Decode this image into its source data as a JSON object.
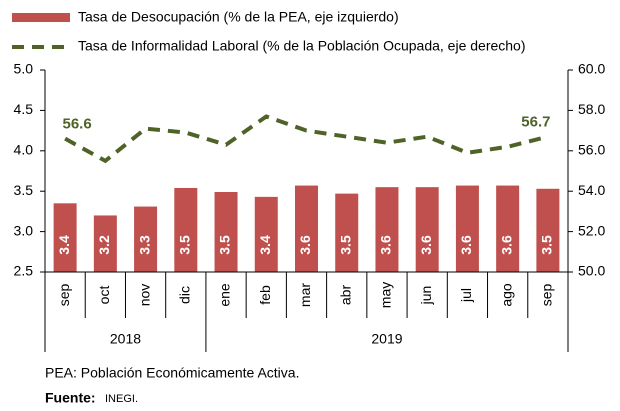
{
  "chart_data": {
    "type": "bar_line",
    "groups": [
      {
        "label": "2018",
        "categories": [
          "sep",
          "oct",
          "nov",
          "dic"
        ]
      },
      {
        "label": "2019",
        "categories": [
          "ene",
          "feb",
          "mar",
          "abr",
          "may",
          "jun",
          "jul",
          "ago",
          "sep"
        ]
      }
    ],
    "series": [
      {
        "name": "Tasa de Desocupación (% de la PEA, eje izquierdo)",
        "type": "bar",
        "color": "#c0504d",
        "values": [
          3.35,
          3.2,
          3.31,
          3.54,
          3.49,
          3.43,
          3.57,
          3.47,
          3.55,
          3.55,
          3.57,
          3.57,
          3.53
        ],
        "value_labels": [
          "3.4",
          "3.2",
          "3.3",
          "3.5",
          "3.5",
          "3.4",
          "3.6",
          "3.5",
          "3.6",
          "3.6",
          "3.6",
          "3.6",
          "3.5"
        ]
      },
      {
        "name": "Tasa de Informalidad Laboral (% de la Población Ocupada, eje derecho)",
        "type": "line",
        "axis": "y2",
        "color": "#4f6228",
        "values": [
          56.6,
          55.5,
          57.1,
          56.9,
          56.3,
          57.7,
          57.0,
          56.7,
          56.4,
          56.7,
          55.9,
          56.2,
          56.7
        ],
        "value_labels": [
          "56.6",
          null,
          null,
          null,
          null,
          null,
          null,
          null,
          null,
          null,
          null,
          null,
          "56.7"
        ]
      }
    ],
    "ylim": [
      2.5,
      5.0
    ],
    "yticks": [
      {
        "value": 2.5,
        "label": "2.5"
      },
      {
        "value": 3.0,
        "label": "3.0"
      },
      {
        "value": 3.5,
        "label": "3.5"
      },
      {
        "value": 4.0,
        "label": "4.0"
      },
      {
        "value": 4.5,
        "label": "4.5"
      },
      {
        "value": 5.0,
        "label": "5.0"
      }
    ],
    "y2lim": [
      50,
      60
    ],
    "y2ticks": [
      {
        "value": 50,
        "label": "50.0"
      },
      {
        "value": 52,
        "label": "52.0"
      },
      {
        "value": 54,
        "label": "54.0"
      },
      {
        "value": 56,
        "label": "56.0"
      },
      {
        "value": 58,
        "label": "58.0"
      },
      {
        "value": 60,
        "label": "60.0"
      }
    ],
    "note": "PEA: Población Económicamente Activa.",
    "source": {
      "label": "Fuente:",
      "text": "INEGI."
    }
  }
}
